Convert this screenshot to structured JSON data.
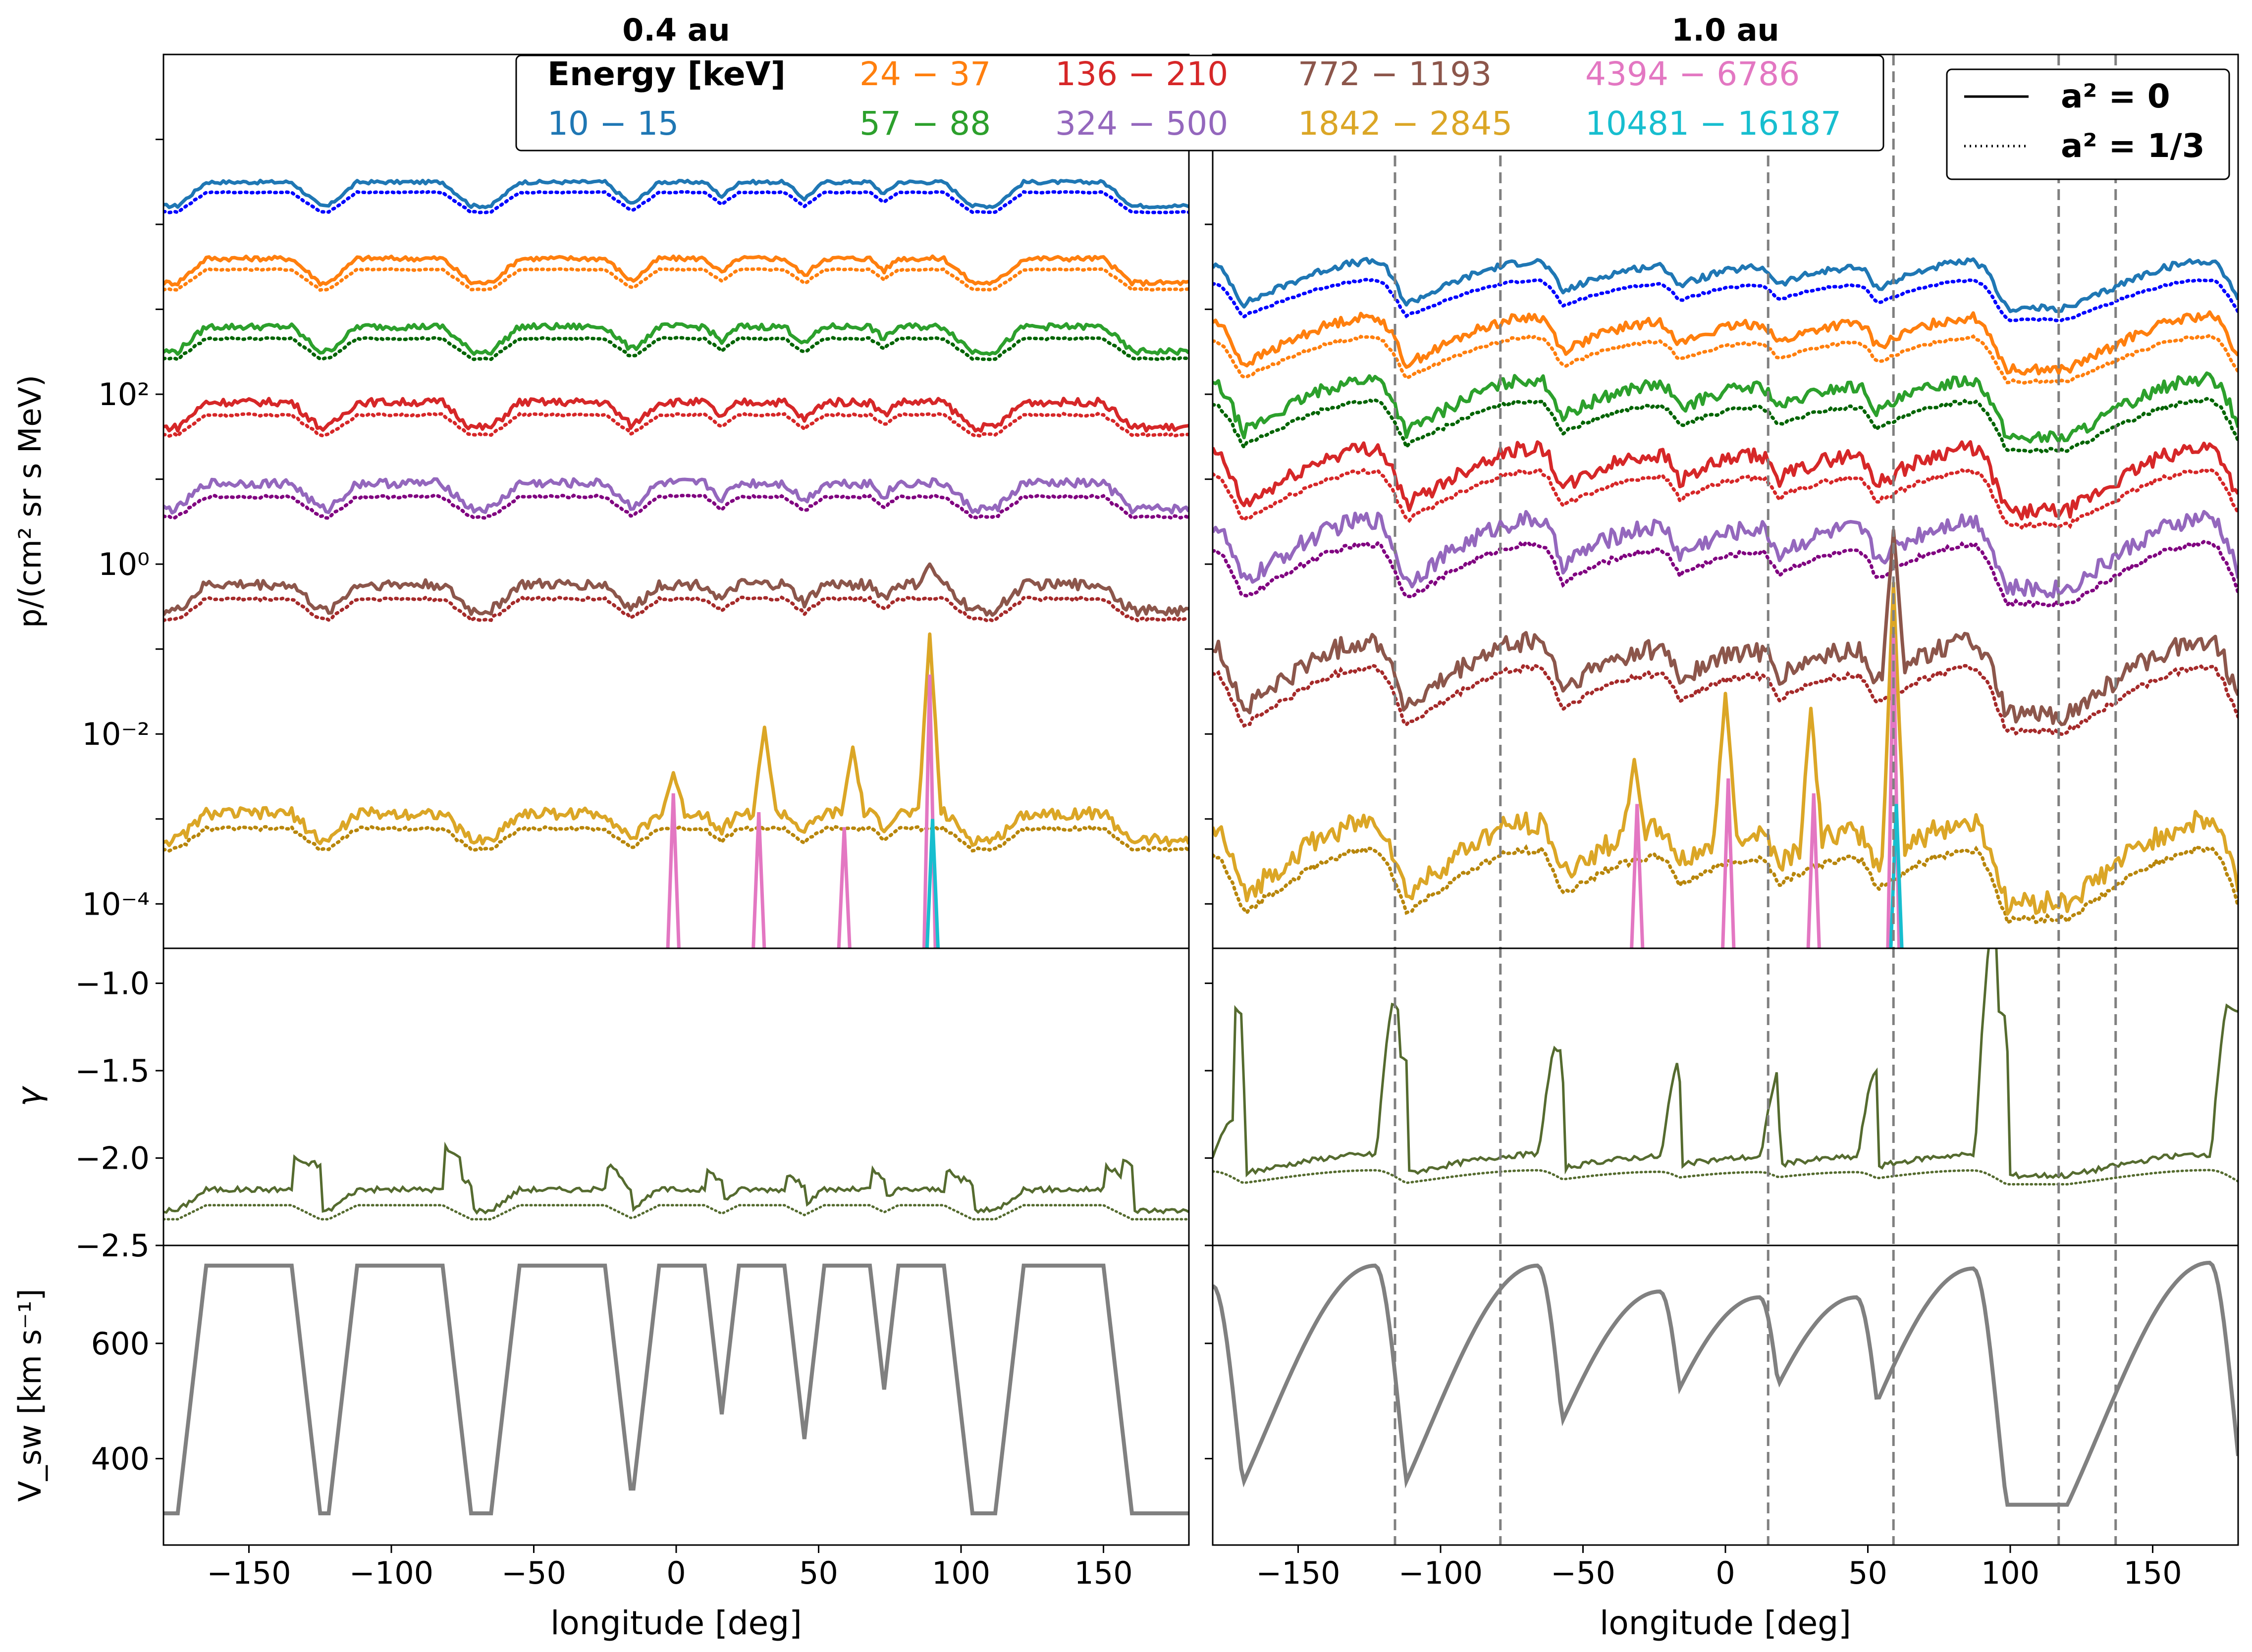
{
  "chart_data": {
    "type": "line",
    "figure": {
      "xlabel": "longitude [deg]",
      "xlim": [
        -180,
        180
      ],
      "xticks": [
        -150,
        -100,
        -50,
        0,
        50,
        100,
        150
      ],
      "legend_energy": {
        "title": "Energy [keV]",
        "placement": "top-center",
        "entries": [
          {
            "label": "10 − 15",
            "color": "#1f77b4"
          },
          {
            "label": "24 − 37",
            "color": "#ff7f0e"
          },
          {
            "label": "57 − 88",
            "color": "#2ca02c"
          },
          {
            "label": "136 − 210",
            "color": "#d62728"
          },
          {
            "label": "324 − 500",
            "color": "#9467bd"
          },
          {
            "label": "772 − 1193",
            "color": "#8c564b"
          },
          {
            "label": "1842 − 2845",
            "color": "#dba626"
          },
          {
            "label": "4394 − 6786",
            "color": "#e377c2"
          },
          {
            "label": "10481 − 16187",
            "color": "#17becf"
          }
        ]
      },
      "legend_style": {
        "placement": "top-right",
        "entries": [
          {
            "label": "a² = 0",
            "linestyle": "solid"
          },
          {
            "label": "a² = 1/3",
            "linestyle": "dotted"
          }
        ]
      },
      "gamma_color": "#556b2f",
      "vsw_color": "#808080",
      "marker_color": "#808080",
      "marker_longitudes_1au": [
        -116,
        -79,
        15,
        59,
        117,
        137
      ]
    },
    "panels": [
      {
        "title": "0.4 au",
        "flux": {
          "ylabel": "p/(cm² sr s MeV)",
          "yscale": "log",
          "yticks": [
            "10²",
            "10⁰",
            "10⁻²",
            "10⁻⁴"
          ],
          "ytick_values": [
            100,
            1,
            0.01,
            0.0001
          ],
          "ylim": [
            3e-05,
            1000000
          ],
          "base_levels": [
            20000,
            2500,
            390,
            50,
            5.5,
            0.35,
            0.0007
          ],
          "modulation_dex": 0.28,
          "dotted_offset_dex": -0.12,
          "spikes": [
            {
              "x": 89,
              "series": "772 − 1193",
              "value": 1.0
            },
            {
              "x": 89,
              "series": "1842 − 2845",
              "value": 0.15
            },
            {
              "x": 31,
              "series": "1842 − 2845",
              "value": 0.012
            },
            {
              "x": 62,
              "series": "1842 − 2845",
              "value": 0.007
            },
            {
              "x": -1,
              "series": "1842 − 2845",
              "value": 0.0035
            },
            {
              "x": 89,
              "series": "4394 − 6786",
              "value": 0.05
            },
            {
              "x": -1,
              "series": "4394 − 6786",
              "value": 0.002
            },
            {
              "x": 29,
              "series": "4394 − 6786",
              "value": 0.0012
            },
            {
              "x": 59,
              "series": "4394 − 6786",
              "value": 0.0008
            },
            {
              "x": 90,
              "series": "10481 − 16187",
              "value": 0.001
            }
          ]
        },
        "gamma": {
          "ylabel": "γ",
          "ylim": [
            -2.5,
            -0.8
          ],
          "yticks": [
            -1.0,
            -1.5,
            -2.0,
            -2.5
          ],
          "baseline": -2.3,
          "peak_values": [
            -2.1,
            -2.05,
            -2.15,
            -2.18,
            -2.2,
            -2.18,
            -2.15,
            -2.05
          ]
        },
        "vsw": {
          "ylabel": "V_sw [km s⁻¹]",
          "ylim": [
            250,
            770
          ],
          "yticks": [
            400,
            600
          ],
          "v_min": 305,
          "v_max": 735,
          "fast_streams": [
            [
              -165,
              -135
            ],
            [
              -112,
              -82
            ],
            [
              -55,
              -25
            ],
            [
              -6,
              10
            ],
            [
              22,
              38
            ],
            [
              52,
              68
            ],
            [
              78,
              94
            ],
            [
              122,
              150
            ]
          ]
        }
      },
      {
        "title": "1.0 au",
        "flux": {
          "yscale": "log",
          "ylim": [
            3e-05,
            1000000
          ],
          "base_levels": [
            1500,
            300,
            50,
            7,
            0.9,
            0.03,
            0.0002
          ],
          "modulation_dex": 0.55,
          "dotted_offset_dex": -0.22,
          "spikes": [
            {
              "x": 59,
              "series": "772 − 1193",
              "value": 2.5
            },
            {
              "x": 59,
              "series": "1842 − 2845",
              "value": 0.6
            },
            {
              "x": 59,
              "series": "4394 − 6786",
              "value": 0.15
            },
            {
              "x": 60,
              "series": "10481 − 16187",
              "value": 0.0015
            },
            {
              "x": -32,
              "series": "1842 − 2845",
              "value": 0.005
            },
            {
              "x": 0,
              "series": "1842 − 2845",
              "value": 0.03
            },
            {
              "x": 30,
              "series": "1842 − 2845",
              "value": 0.02
            },
            {
              "x": -31,
              "series": "4394 − 6786",
              "value": 0.0015
            },
            {
              "x": 1,
              "series": "4394 − 6786",
              "value": 0.003
            },
            {
              "x": 31,
              "series": "4394 − 6786",
              "value": 0.002
            }
          ]
        },
        "gamma": {
          "ylim": [
            -2.5,
            -0.8
          ],
          "baseline": -2.1,
          "peak_values": [
            -1.85,
            -1.2,
            -1.45,
            -1.5,
            -1.55,
            -0.8,
            -1.2,
            -1.2
          ]
        },
        "vsw": {
          "ylim": [
            250,
            770
          ],
          "v_min": 320,
          "v_max": 735,
          "peaks": [
            [
              -123,
              735
            ],
            [
              -66,
              735
            ],
            [
              -23,
              690
            ],
            [
              12,
              680
            ],
            [
              46,
              680
            ],
            [
              87,
              730
            ],
            [
              -180,
              700
            ],
            [
              170,
              740
            ]
          ]
        }
      }
    ]
  }
}
